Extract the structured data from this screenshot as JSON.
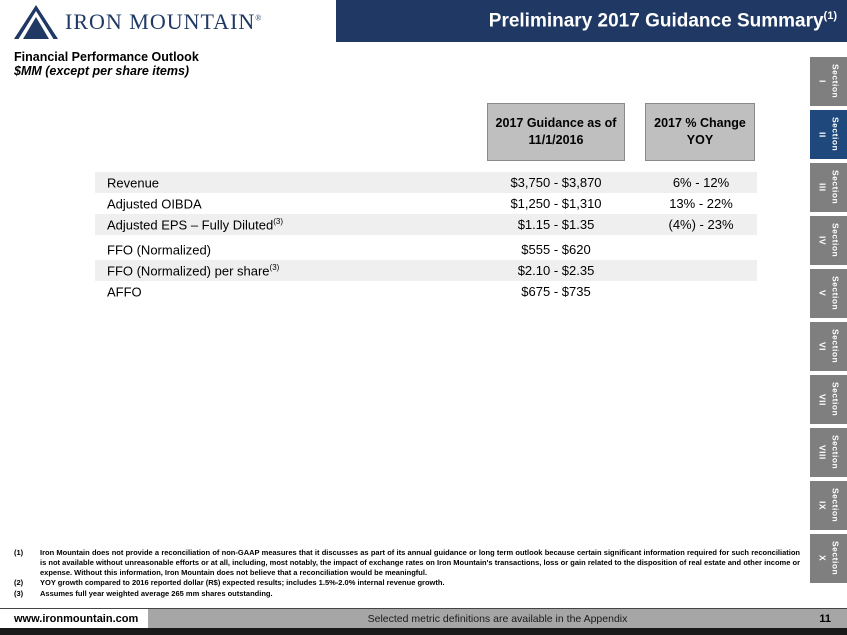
{
  "header": {
    "logo_text": "IRON MOUNTAIN",
    "logo_reg": "®",
    "title": "Preliminary 2017 Guidance Summary",
    "title_sup": "(1)"
  },
  "subtitle": {
    "line1": "Financial Performance Outlook",
    "line2": "$MM (except per share items)"
  },
  "table": {
    "col_headers": [
      "2017 Guidance as of 11/1/2016",
      "2017 % Change YOY"
    ],
    "rows": [
      {
        "label": "Revenue",
        "sup": "",
        "guidance": "$3,750 - $3,870",
        "yoy": "6% - 12%"
      },
      {
        "label": "Adjusted OIBDA",
        "sup": "",
        "guidance": "$1,250 - $1,310",
        "yoy": "13% - 22%"
      },
      {
        "label": "Adjusted EPS – Fully Diluted",
        "sup": "(3)",
        "guidance": "$1.15 - $1.35",
        "yoy": "(4%) - 23%"
      },
      {
        "label": "FFO (Normalized)",
        "sup": "",
        "guidance": "$555 - $620",
        "yoy": ""
      },
      {
        "label": "FFO (Normalized) per share",
        "sup": "(3)",
        "guidance": "$2.10 - $2.35",
        "yoy": ""
      },
      {
        "label": "AFFO",
        "sup": "",
        "guidance": "$675 - $735",
        "yoy": ""
      }
    ]
  },
  "sidebar": {
    "tabs": [
      {
        "word": "Section",
        "numeral": "I",
        "active": false
      },
      {
        "word": "Section",
        "numeral": "II",
        "active": true
      },
      {
        "word": "Section",
        "numeral": "III",
        "active": false
      },
      {
        "word": "Section",
        "numeral": "IV",
        "active": false
      },
      {
        "word": "Section",
        "numeral": "V",
        "active": false
      },
      {
        "word": "Section",
        "numeral": "VI",
        "active": false
      },
      {
        "word": "Section",
        "numeral": "VII",
        "active": false
      },
      {
        "word": "Section",
        "numeral": "VIII",
        "active": false
      },
      {
        "word": "Section",
        "numeral": "IX",
        "active": false
      },
      {
        "word": "Section",
        "numeral": "X",
        "active": false
      }
    ]
  },
  "footnotes": [
    {
      "num": "(1)",
      "text": "Iron Mountain does not provide a reconciliation of non-GAAP measures that it discusses as part of its annual guidance or long term outlook because certain significant information required for such reconciliation is not available without unreasonable efforts or at all, including, most notably, the impact of exchange rates on Iron Mountain's transactions, loss or gain related to the disposition of real estate and other income or expense.  Without this information, Iron Mountain does not believe that a reconciliation would be meaningful."
    },
    {
      "num": "(2)",
      "text": "YOY growth compared to 2016 reported dollar (R$) expected results; includes 1.5%-2.0% internal revenue growth."
    },
    {
      "num": "(3)",
      "text": "Assumes full year weighted average 265 mm shares outstanding."
    }
  ],
  "footer": {
    "url": "www.ironmountain.com",
    "note": "Selected metric definitions are available in the Appendix",
    "page": "11"
  }
}
